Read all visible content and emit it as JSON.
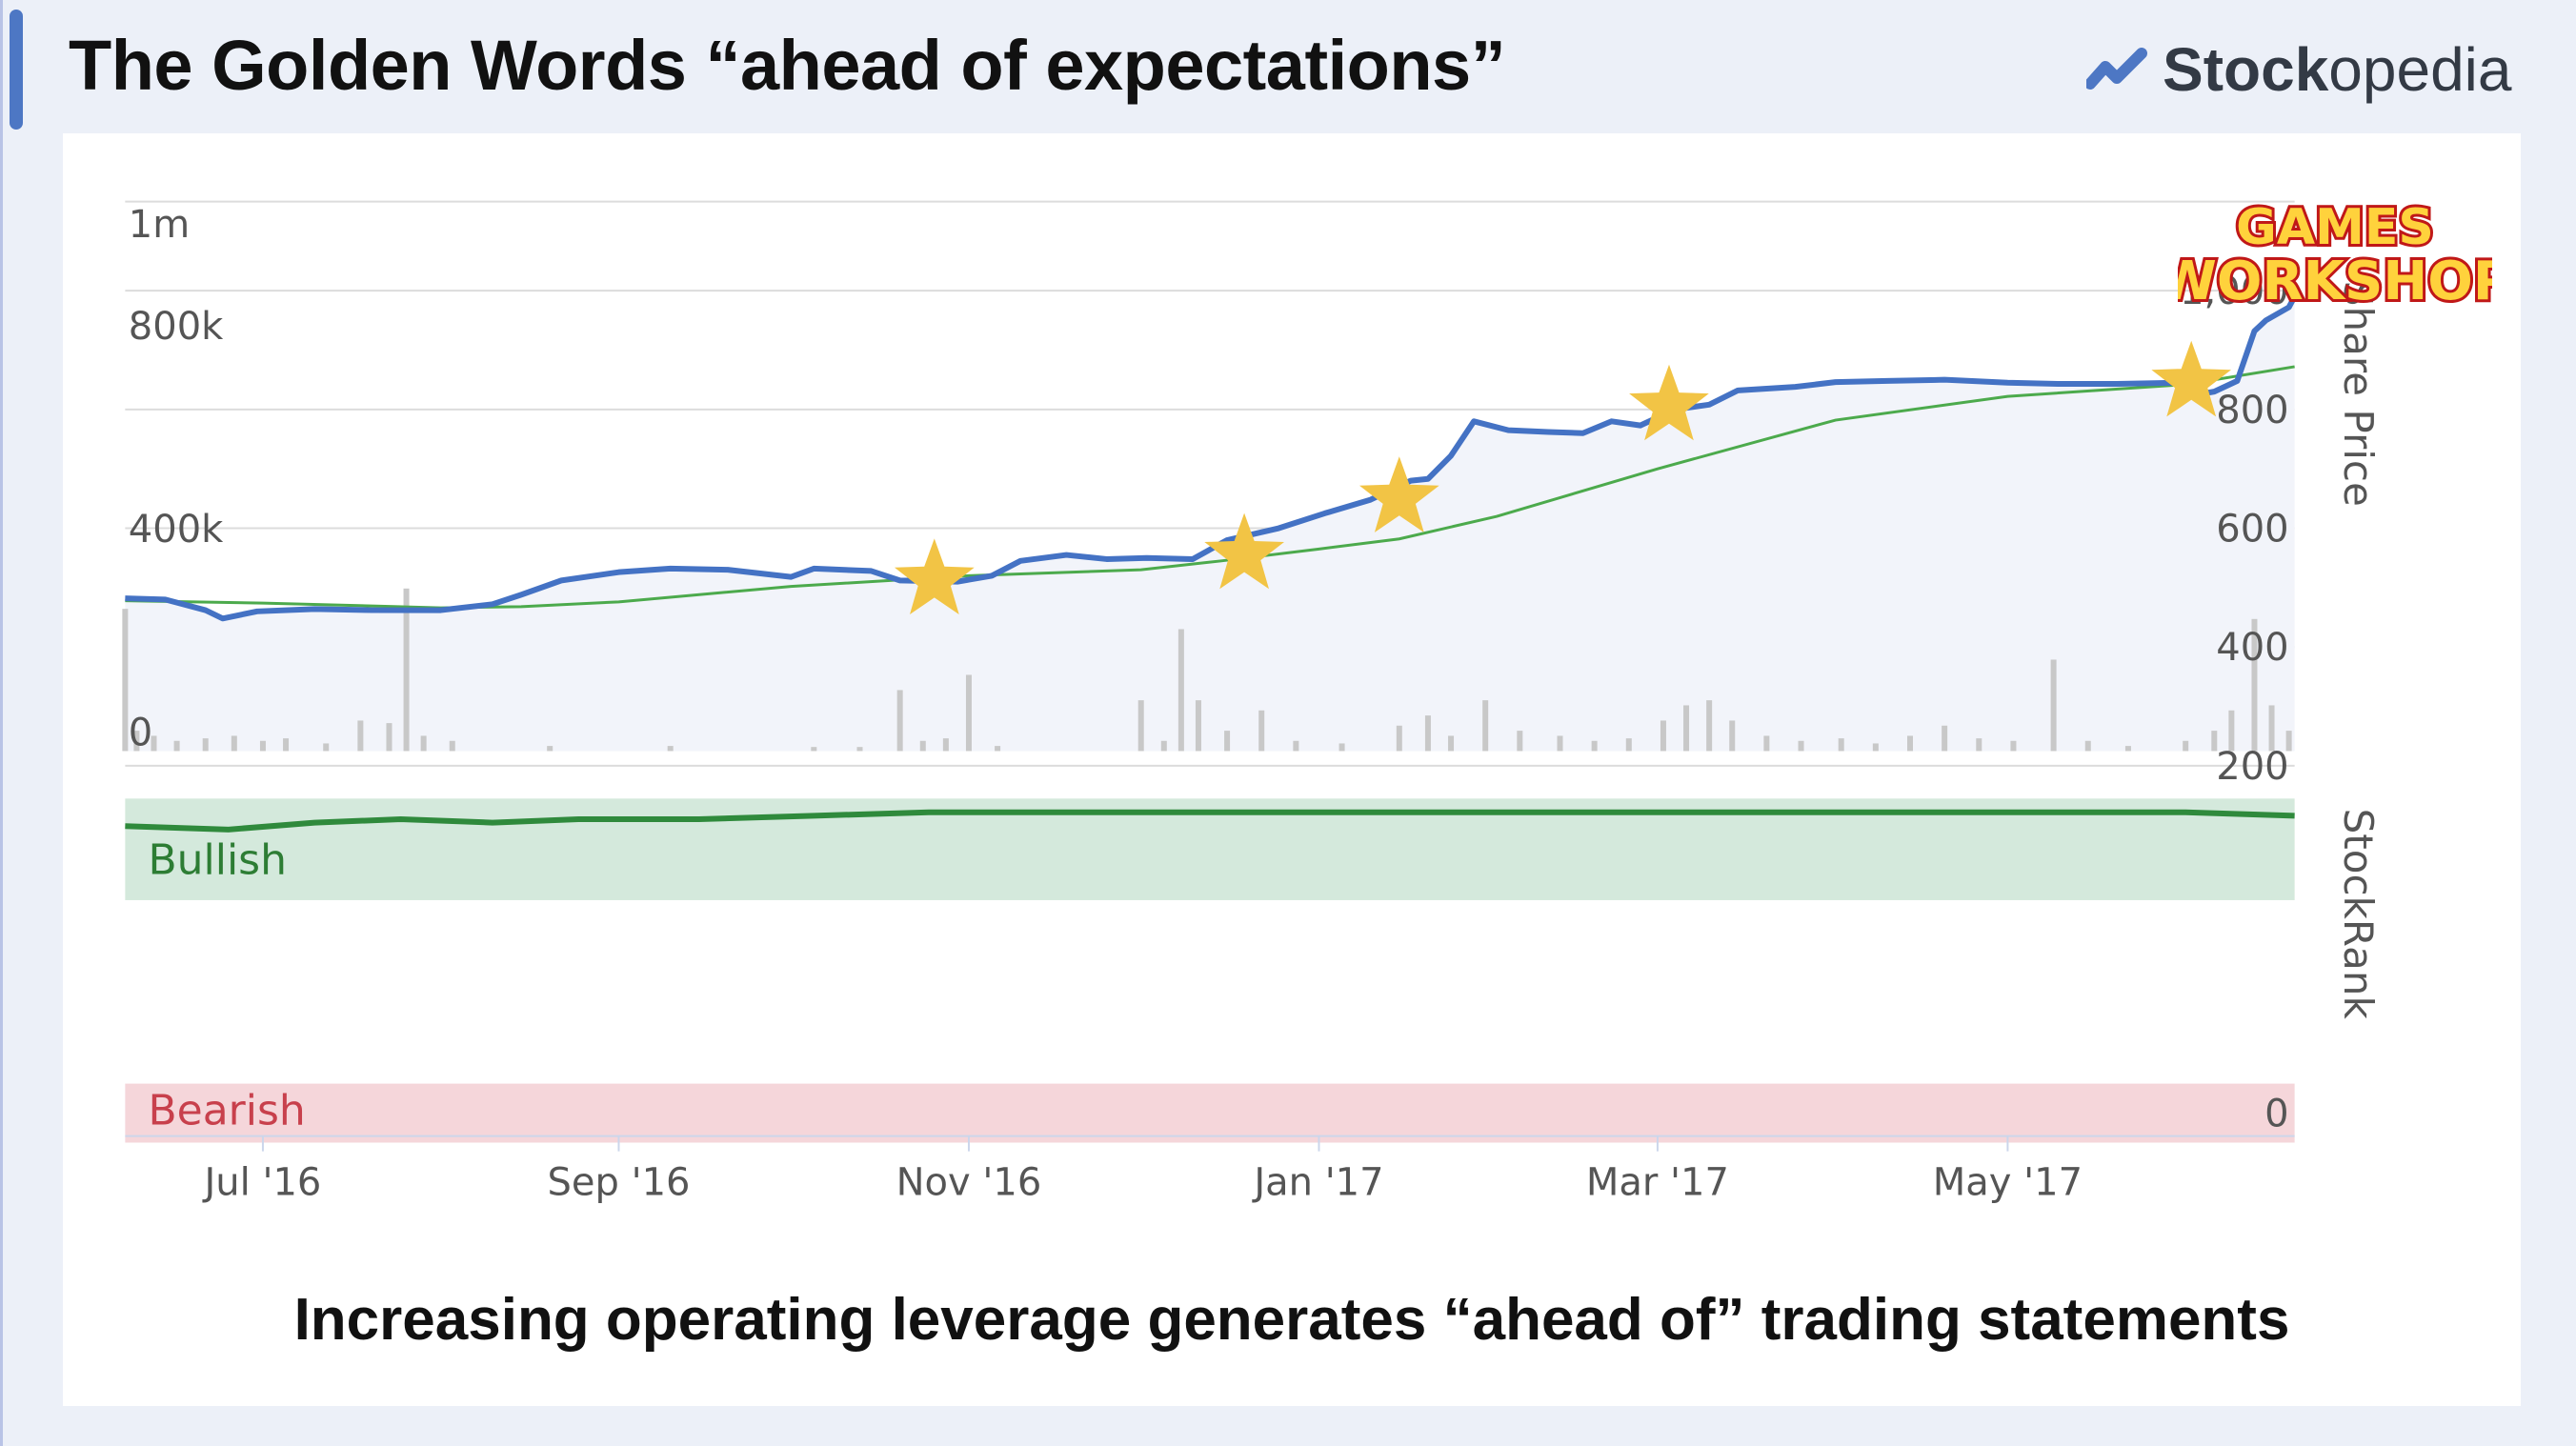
{
  "slide": {
    "title": "The Golden Words “ahead of expectations”",
    "brand_bold": "Stock",
    "brand_light": "opedia",
    "caption": "Increasing operating leverage generates “ahead of” trading statements",
    "logo_line1": "GAMES",
    "logo_line2": "WORKSHOP"
  },
  "colors": {
    "accent": "#4d77c4",
    "price_line": "#4472c4",
    "moving_average": "#4caa4c",
    "star": "#f2c445",
    "bullish_band": "#d4e9dc",
    "bearish_band": "#f5d6da",
    "stockrank_line": "#2f8a3c",
    "volume_bar": "#c8c8c8"
  },
  "chart_data": {
    "type": "line",
    "title": "",
    "x_axis": {
      "type": "date",
      "range": [
        "2016-06-07",
        "2017-06-20"
      ],
      "tick_labels": [
        "Jul '16",
        "Sep '16",
        "Nov '16",
        "Jan '17",
        "Mar '17",
        "May '17"
      ]
    },
    "price_axis": {
      "label": "Share Price",
      "range": [
        200,
        1000
      ],
      "tick_labels": [
        "200",
        "400",
        "600",
        "800",
        "1,000"
      ],
      "side": "right"
    },
    "volume_axis": {
      "range": [
        0,
        1000000
      ],
      "tick_labels": [
        "0",
        "400k",
        "800k",
        "1m"
      ],
      "side": "left"
    },
    "stockrank_axis": {
      "label": "StockRank",
      "tick_labels": [
        "0"
      ],
      "band_labels": {
        "bullish": "Bullish",
        "bearish": "Bearish"
      }
    },
    "grid": true,
    "series": [
      {
        "key": "price",
        "kind": "line",
        "points": [
          [
            "2016-06-07",
            482
          ],
          [
            "2016-06-14",
            480
          ],
          [
            "2016-06-21",
            462
          ],
          [
            "2016-06-24",
            448
          ],
          [
            "2016-06-30",
            460
          ],
          [
            "2016-07-10",
            464
          ],
          [
            "2016-07-20",
            462
          ],
          [
            "2016-08-01",
            462
          ],
          [
            "2016-08-10",
            472
          ],
          [
            "2016-08-15",
            488
          ],
          [
            "2016-08-22",
            512
          ],
          [
            "2016-09-01",
            526
          ],
          [
            "2016-09-10",
            532
          ],
          [
            "2016-09-20",
            530
          ],
          [
            "2016-10-01",
            518
          ],
          [
            "2016-10-05",
            532
          ],
          [
            "2016-10-15",
            528
          ],
          [
            "2016-10-20",
            512
          ],
          [
            "2016-10-30",
            510
          ],
          [
            "2016-11-05",
            520
          ],
          [
            "2016-11-10",
            545
          ],
          [
            "2016-11-18",
            555
          ],
          [
            "2016-11-25",
            548
          ],
          [
            "2016-12-02",
            550
          ],
          [
            "2016-12-10",
            548
          ],
          [
            "2016-12-16",
            580
          ],
          [
            "2016-12-25",
            600
          ],
          [
            "2017-01-02",
            625
          ],
          [
            "2017-01-10",
            648
          ],
          [
            "2017-01-17",
            680
          ],
          [
            "2017-01-20",
            683
          ],
          [
            "2017-01-24",
            722
          ],
          [
            "2017-01-28",
            780
          ],
          [
            "2017-02-03",
            765
          ],
          [
            "2017-02-10",
            762
          ],
          [
            "2017-02-16",
            760
          ],
          [
            "2017-02-21",
            780
          ],
          [
            "2017-02-26",
            773
          ],
          [
            "2017-03-04",
            800
          ],
          [
            "2017-03-10",
            808
          ],
          [
            "2017-03-15",
            832
          ],
          [
            "2017-03-25",
            838
          ],
          [
            "2017-04-01",
            846
          ],
          [
            "2017-04-10",
            848
          ],
          [
            "2017-04-20",
            850
          ],
          [
            "2017-05-01",
            845
          ],
          [
            "2017-05-10",
            843
          ],
          [
            "2017-05-20",
            843
          ],
          [
            "2017-05-31",
            845
          ],
          [
            "2017-06-03",
            825
          ],
          [
            "2017-06-06",
            830
          ],
          [
            "2017-06-10",
            848
          ],
          [
            "2017-06-13",
            932
          ],
          [
            "2017-06-15",
            950
          ],
          [
            "2017-06-19",
            972
          ],
          [
            "2017-06-20",
            990
          ]
        ]
      },
      {
        "key": "moving_average",
        "kind": "line",
        "points": [
          [
            "2016-06-07",
            478
          ],
          [
            "2016-07-01",
            474
          ],
          [
            "2016-08-01",
            466
          ],
          [
            "2016-08-15",
            468
          ],
          [
            "2016-09-01",
            476
          ],
          [
            "2016-10-01",
            502
          ],
          [
            "2016-11-01",
            520
          ],
          [
            "2016-12-01",
            530
          ],
          [
            "2016-12-15",
            545
          ],
          [
            "2017-01-01",
            565
          ],
          [
            "2017-01-15",
            582
          ],
          [
            "2017-02-01",
            620
          ],
          [
            "2017-03-01",
            700
          ],
          [
            "2017-04-01",
            782
          ],
          [
            "2017-05-01",
            822
          ],
          [
            "2017-06-01",
            842
          ],
          [
            "2017-06-20",
            872
          ]
        ]
      }
    ],
    "volume": [
      [
        "2016-06-07",
        280000
      ],
      [
        "2016-06-09",
        40000
      ],
      [
        "2016-06-12",
        30000
      ],
      [
        "2016-06-16",
        20000
      ],
      [
        "2016-06-21",
        25000
      ],
      [
        "2016-06-26",
        30000
      ],
      [
        "2016-07-01",
        20000
      ],
      [
        "2016-07-05",
        25000
      ],
      [
        "2016-07-12",
        15000
      ],
      [
        "2016-07-18",
        60000
      ],
      [
        "2016-07-23",
        55000
      ],
      [
        "2016-07-26",
        320000
      ],
      [
        "2016-07-29",
        30000
      ],
      [
        "2016-08-03",
        20000
      ],
      [
        "2016-08-20",
        10000
      ],
      [
        "2016-09-10",
        10000
      ],
      [
        "2016-10-05",
        8000
      ],
      [
        "2016-10-13",
        8000
      ],
      [
        "2016-10-20",
        120000
      ],
      [
        "2016-10-24",
        20000
      ],
      [
        "2016-10-28",
        25000
      ],
      [
        "2016-11-01",
        150000
      ],
      [
        "2016-11-06",
        10000
      ],
      [
        "2016-12-01",
        100000
      ],
      [
        "2016-12-05",
        20000
      ],
      [
        "2016-12-08",
        240000
      ],
      [
        "2016-12-11",
        100000
      ],
      [
        "2016-12-16",
        40000
      ],
      [
        "2016-12-22",
        80000
      ],
      [
        "2016-12-28",
        20000
      ],
      [
        "2017-01-05",
        15000
      ],
      [
        "2017-01-15",
        50000
      ],
      [
        "2017-01-20",
        70000
      ],
      [
        "2017-01-24",
        30000
      ],
      [
        "2017-01-30",
        100000
      ],
      [
        "2017-02-05",
        40000
      ],
      [
        "2017-02-12",
        30000
      ],
      [
        "2017-02-18",
        20000
      ],
      [
        "2017-02-24",
        25000
      ],
      [
        "2017-03-02",
        60000
      ],
      [
        "2017-03-06",
        90000
      ],
      [
        "2017-03-10",
        100000
      ],
      [
        "2017-03-14",
        60000
      ],
      [
        "2017-03-20",
        30000
      ],
      [
        "2017-03-26",
        20000
      ],
      [
        "2017-04-02",
        25000
      ],
      [
        "2017-04-08",
        15000
      ],
      [
        "2017-04-14",
        30000
      ],
      [
        "2017-04-20",
        50000
      ],
      [
        "2017-04-26",
        25000
      ],
      [
        "2017-05-02",
        20000
      ],
      [
        "2017-05-09",
        180000
      ],
      [
        "2017-05-15",
        20000
      ],
      [
        "2017-05-22",
        10000
      ],
      [
        "2017-06-01",
        20000
      ],
      [
        "2017-06-06",
        40000
      ],
      [
        "2017-06-09",
        80000
      ],
      [
        "2017-06-13",
        260000
      ],
      [
        "2017-06-16",
        90000
      ],
      [
        "2017-06-19",
        40000
      ]
    ],
    "stockrank": [
      [
        "2016-06-07",
        92
      ],
      [
        "2016-06-25",
        91
      ],
      [
        "2016-07-10",
        93
      ],
      [
        "2016-07-25",
        94
      ],
      [
        "2016-08-10",
        93
      ],
      [
        "2016-08-25",
        94
      ],
      [
        "2016-09-15",
        94
      ],
      [
        "2016-10-05",
        95
      ],
      [
        "2016-10-25",
        96
      ],
      [
        "2016-12-01",
        96
      ],
      [
        "2017-02-01",
        96
      ],
      [
        "2017-04-01",
        96
      ],
      [
        "2017-06-01",
        96
      ],
      [
        "2017-06-20",
        95
      ]
    ],
    "annotations": [
      {
        "type": "star",
        "date": "2016-10-26",
        "price": 512
      },
      {
        "type": "star",
        "date": "2016-12-19",
        "price": 555
      },
      {
        "type": "star",
        "date": "2017-01-15",
        "price": 650
      },
      {
        "type": "star",
        "date": "2017-03-03",
        "price": 805
      },
      {
        "type": "star",
        "date": "2017-06-02",
        "price": 845
      }
    ]
  }
}
